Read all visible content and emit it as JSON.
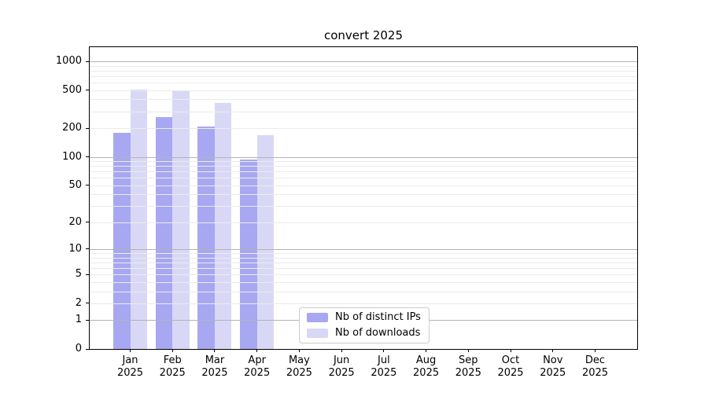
{
  "title": "convert 2025",
  "legend": {
    "items": [
      {
        "label": "Nb of distinct IPs",
        "color": "#a7a7f2"
      },
      {
        "label": "Nb of downloads",
        "color": "#d8d8f6"
      }
    ]
  },
  "chart_data": {
    "type": "bar",
    "title": "convert 2025",
    "categories": [
      "Jan 2025",
      "Feb 2025",
      "Mar 2025",
      "Apr 2025",
      "May 2025",
      "Jun 2025",
      "Jul 2025",
      "Aug 2025",
      "Sep 2025",
      "Oct 2025",
      "Nov 2025",
      "Dec 2025"
    ],
    "series": [
      {
        "name": "Nb of distinct IPs",
        "color": "#a7a7f2",
        "values": [
          180,
          262,
          206,
          94,
          0,
          0,
          0,
          0,
          0,
          0,
          0,
          0
        ]
      },
      {
        "name": "Nb of downloads",
        "color": "#d8d8f6",
        "values": [
          505,
          498,
          368,
          168,
          0,
          0,
          0,
          0,
          0,
          0,
          0,
          0
        ]
      }
    ],
    "xlabel": "",
    "ylabel": "",
    "yscale": "log1p",
    "y_ticks": [
      1000,
      500,
      200,
      100,
      50,
      20,
      10,
      5,
      2,
      1,
      0
    ],
    "ylim": [
      0,
      1000
    ],
    "grid": "both",
    "legend_position": "lower center"
  }
}
